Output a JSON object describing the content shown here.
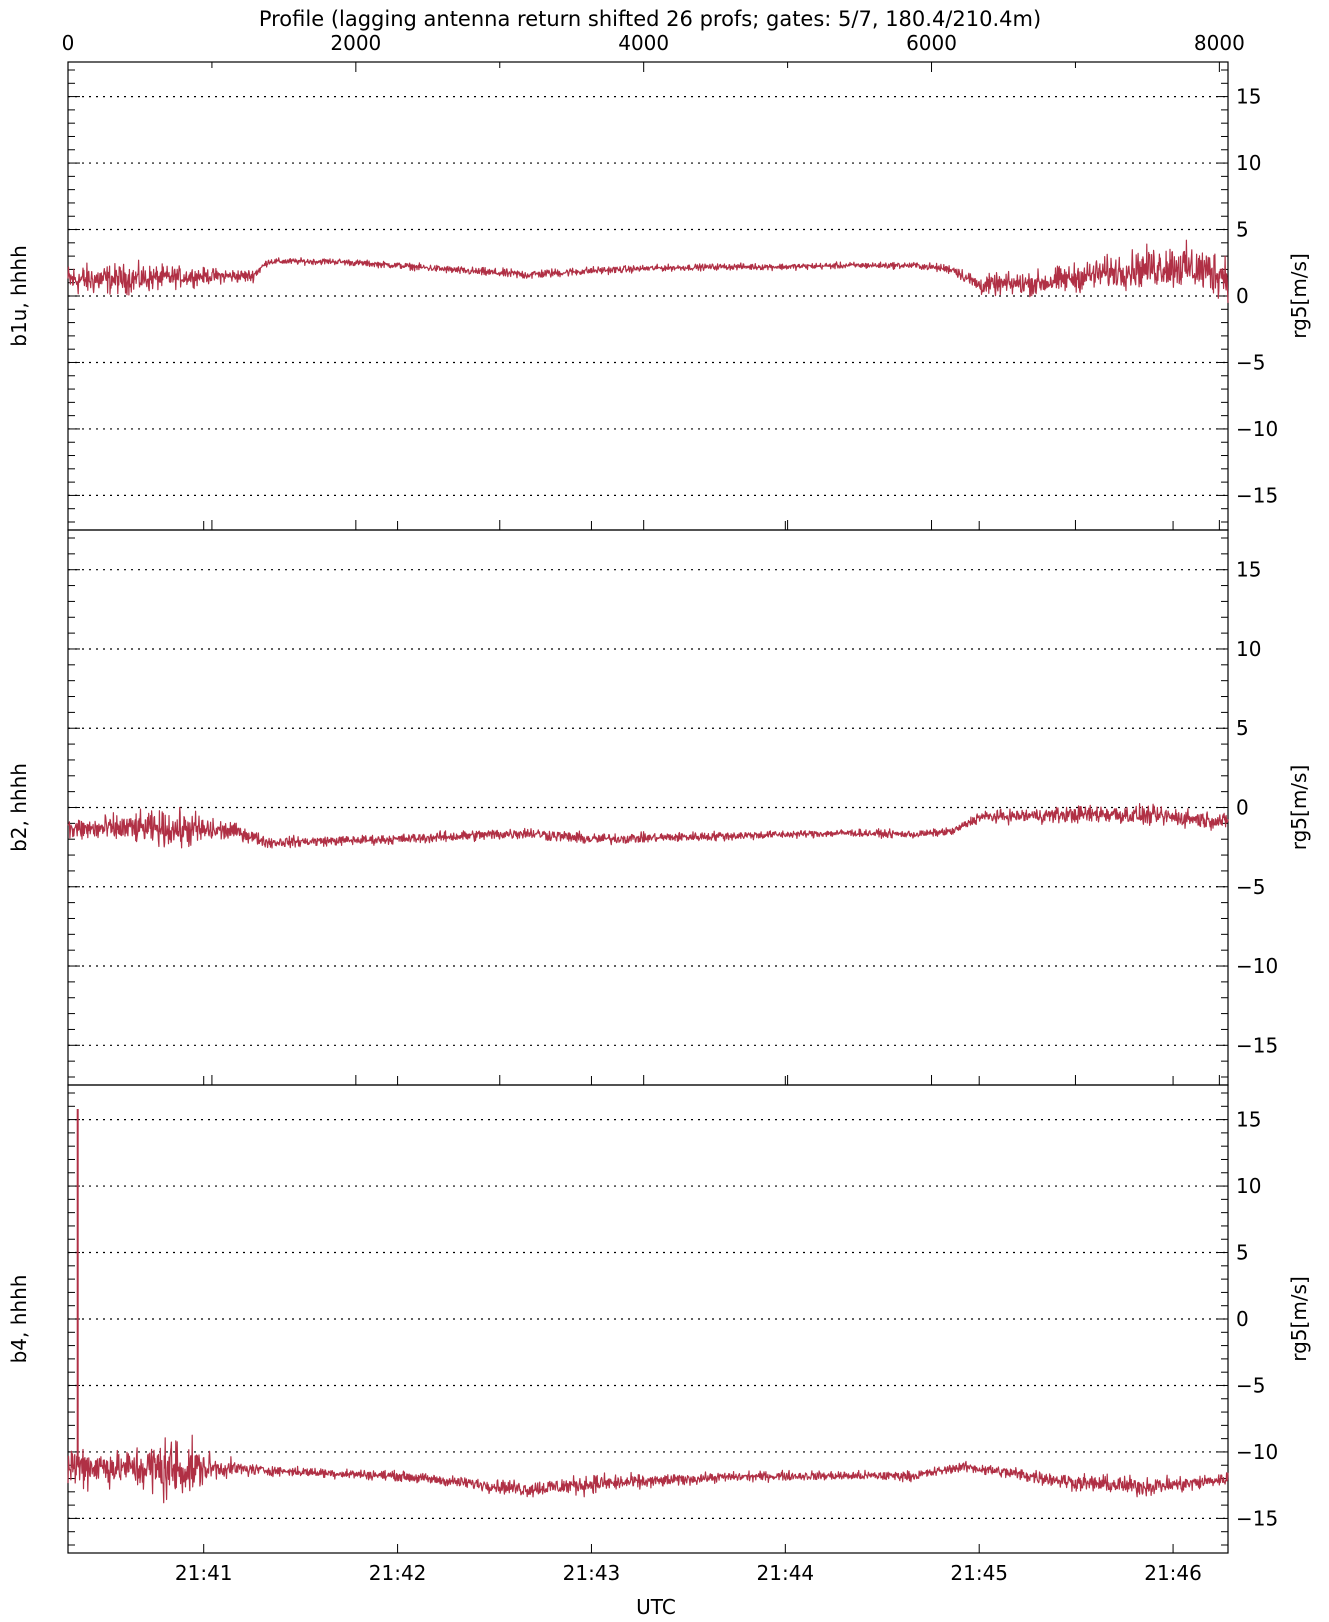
{
  "title": "Profile (lagging antenna return shifted 26 profs; gates: 5/7, 180.4/210.4m)",
  "colors": {
    "trace": "#b03045",
    "axis": "#000000",
    "grid": "#000000"
  },
  "chart_data": [
    {
      "type": "line",
      "name": "b1u",
      "ylabel_left": "b1u, hhhh",
      "ylabel_right": "rg5[m/s]",
      "ylim": [
        -17,
        17
      ],
      "yticks": [
        15,
        10,
        5,
        0,
        -5,
        -10,
        -15
      ],
      "ytick_labels": [
        "15",
        "10",
        "5",
        "0",
        "−5",
        "−10",
        "−15"
      ],
      "grid": "dotted horizontal at y-ticks",
      "top_axis": {
        "label": "",
        "range": [
          0,
          8060
        ],
        "ticks": [
          0,
          2000,
          4000,
          6000,
          8000
        ],
        "tick_labels": [
          "0",
          "2000",
          "4000",
          "6000",
          "8000"
        ]
      },
      "x": [
        "21:40:18",
        "21:40:40",
        "21:41:00",
        "21:41:15",
        "21:41:20",
        "21:41:40",
        "21:42:00",
        "21:42:20",
        "21:42:40",
        "21:43:00",
        "21:43:20",
        "21:43:40",
        "21:44:00",
        "21:44:20",
        "21:44:40",
        "21:44:52",
        "21:45:00",
        "21:45:20",
        "21:45:40",
        "21:46:00",
        "21:46:17"
      ],
      "values": [
        1.2,
        1.3,
        1.5,
        1.5,
        2.6,
        2.6,
        2.3,
        1.9,
        1.6,
        1.9,
        2.1,
        2.2,
        2.2,
        2.3,
        2.3,
        2.0,
        0.8,
        1.0,
        1.8,
        2.3,
        1.6
      ],
      "noise": [
        1.0,
        0.9,
        0.5,
        0.4,
        0.2,
        0.2,
        0.2,
        0.25,
        0.3,
        0.25,
        0.2,
        0.2,
        0.2,
        0.2,
        0.2,
        0.3,
        0.6,
        0.8,
        1.0,
        1.4,
        1.5
      ]
    },
    {
      "type": "line",
      "name": "b2",
      "ylabel_left": "b2, hhhh",
      "ylabel_right": "rg5[m/s]",
      "ylim": [
        -17,
        17
      ],
      "yticks": [
        15,
        10,
        5,
        0,
        -5,
        -10,
        -15
      ],
      "ytick_labels": [
        "15",
        "10",
        "5",
        "0",
        "−5",
        "−10",
        "−15"
      ],
      "grid": "dotted horizontal at y-ticks",
      "x": [
        "21:40:18",
        "21:40:40",
        "21:40:55",
        "21:41:10",
        "21:41:20",
        "21:41:40",
        "21:42:00",
        "21:42:20",
        "21:42:40",
        "21:43:00",
        "21:43:20",
        "21:43:40",
        "21:44:00",
        "21:44:20",
        "21:44:40",
        "21:44:52",
        "21:45:00",
        "21:45:20",
        "21:45:40",
        "21:46:00",
        "21:46:17"
      ],
      "values": [
        -1.4,
        -1.3,
        -1.4,
        -1.5,
        -2.2,
        -2.1,
        -2.0,
        -1.8,
        -1.6,
        -2.0,
        -1.9,
        -1.8,
        -1.7,
        -1.6,
        -1.7,
        -1.5,
        -0.6,
        -0.5,
        -0.4,
        -0.6,
        -0.9
      ],
      "noise": [
        0.6,
        0.8,
        1.0,
        0.4,
        0.3,
        0.25,
        0.25,
        0.3,
        0.3,
        0.3,
        0.25,
        0.25,
        0.2,
        0.2,
        0.2,
        0.2,
        0.3,
        0.4,
        0.5,
        0.5,
        0.4
      ]
    },
    {
      "type": "line",
      "name": "b4",
      "ylabel_left": "b4, hhhh",
      "ylabel_right": "rg5[m/s]",
      "ylim": [
        -17,
        17
      ],
      "yticks": [
        15,
        10,
        5,
        0,
        -5,
        -10,
        -15
      ],
      "ytick_labels": [
        "15",
        "10",
        "5",
        "0",
        "−5",
        "−10",
        "−15"
      ],
      "grid": "dotted horizontal at y-ticks",
      "x": [
        "21:40:18",
        "21:40:35",
        "21:40:50",
        "21:41:05",
        "21:41:20",
        "21:41:40",
        "21:42:00",
        "21:42:20",
        "21:42:40",
        "21:43:00",
        "21:43:20",
        "21:43:40",
        "21:44:00",
        "21:44:20",
        "21:44:40",
        "21:44:55",
        "21:45:10",
        "21:45:30",
        "21:45:50",
        "21:46:05",
        "21:46:17"
      ],
      "values": [
        -11.0,
        -11.2,
        -11.3,
        -11.2,
        -11.4,
        -11.6,
        -11.8,
        -12.3,
        -12.8,
        -12.4,
        -12.2,
        -11.9,
        -11.8,
        -11.8,
        -11.8,
        -11.1,
        -11.6,
        -12.3,
        -12.6,
        -12.4,
        -12.0
      ],
      "noise": [
        1.5,
        1.0,
        2.2,
        0.6,
        0.3,
        0.3,
        0.3,
        0.35,
        0.5,
        0.6,
        0.4,
        0.3,
        0.3,
        0.3,
        0.3,
        0.3,
        0.4,
        0.5,
        0.6,
        0.5,
        0.4
      ],
      "spike": {
        "x": "21:40:21",
        "values": [
          -11.0,
          15.8
        ]
      }
    }
  ],
  "x_axis": {
    "label": "UTC",
    "range": [
      "21:40:18",
      "21:46:17"
    ],
    "ticks": [
      "21:41:00",
      "21:42:00",
      "21:43:00",
      "21:44:00",
      "21:45:00",
      "21:46:00"
    ],
    "tick_labels": [
      "21:41",
      "21:42",
      "21:43",
      "21:44",
      "21:45",
      "21:46"
    ]
  }
}
